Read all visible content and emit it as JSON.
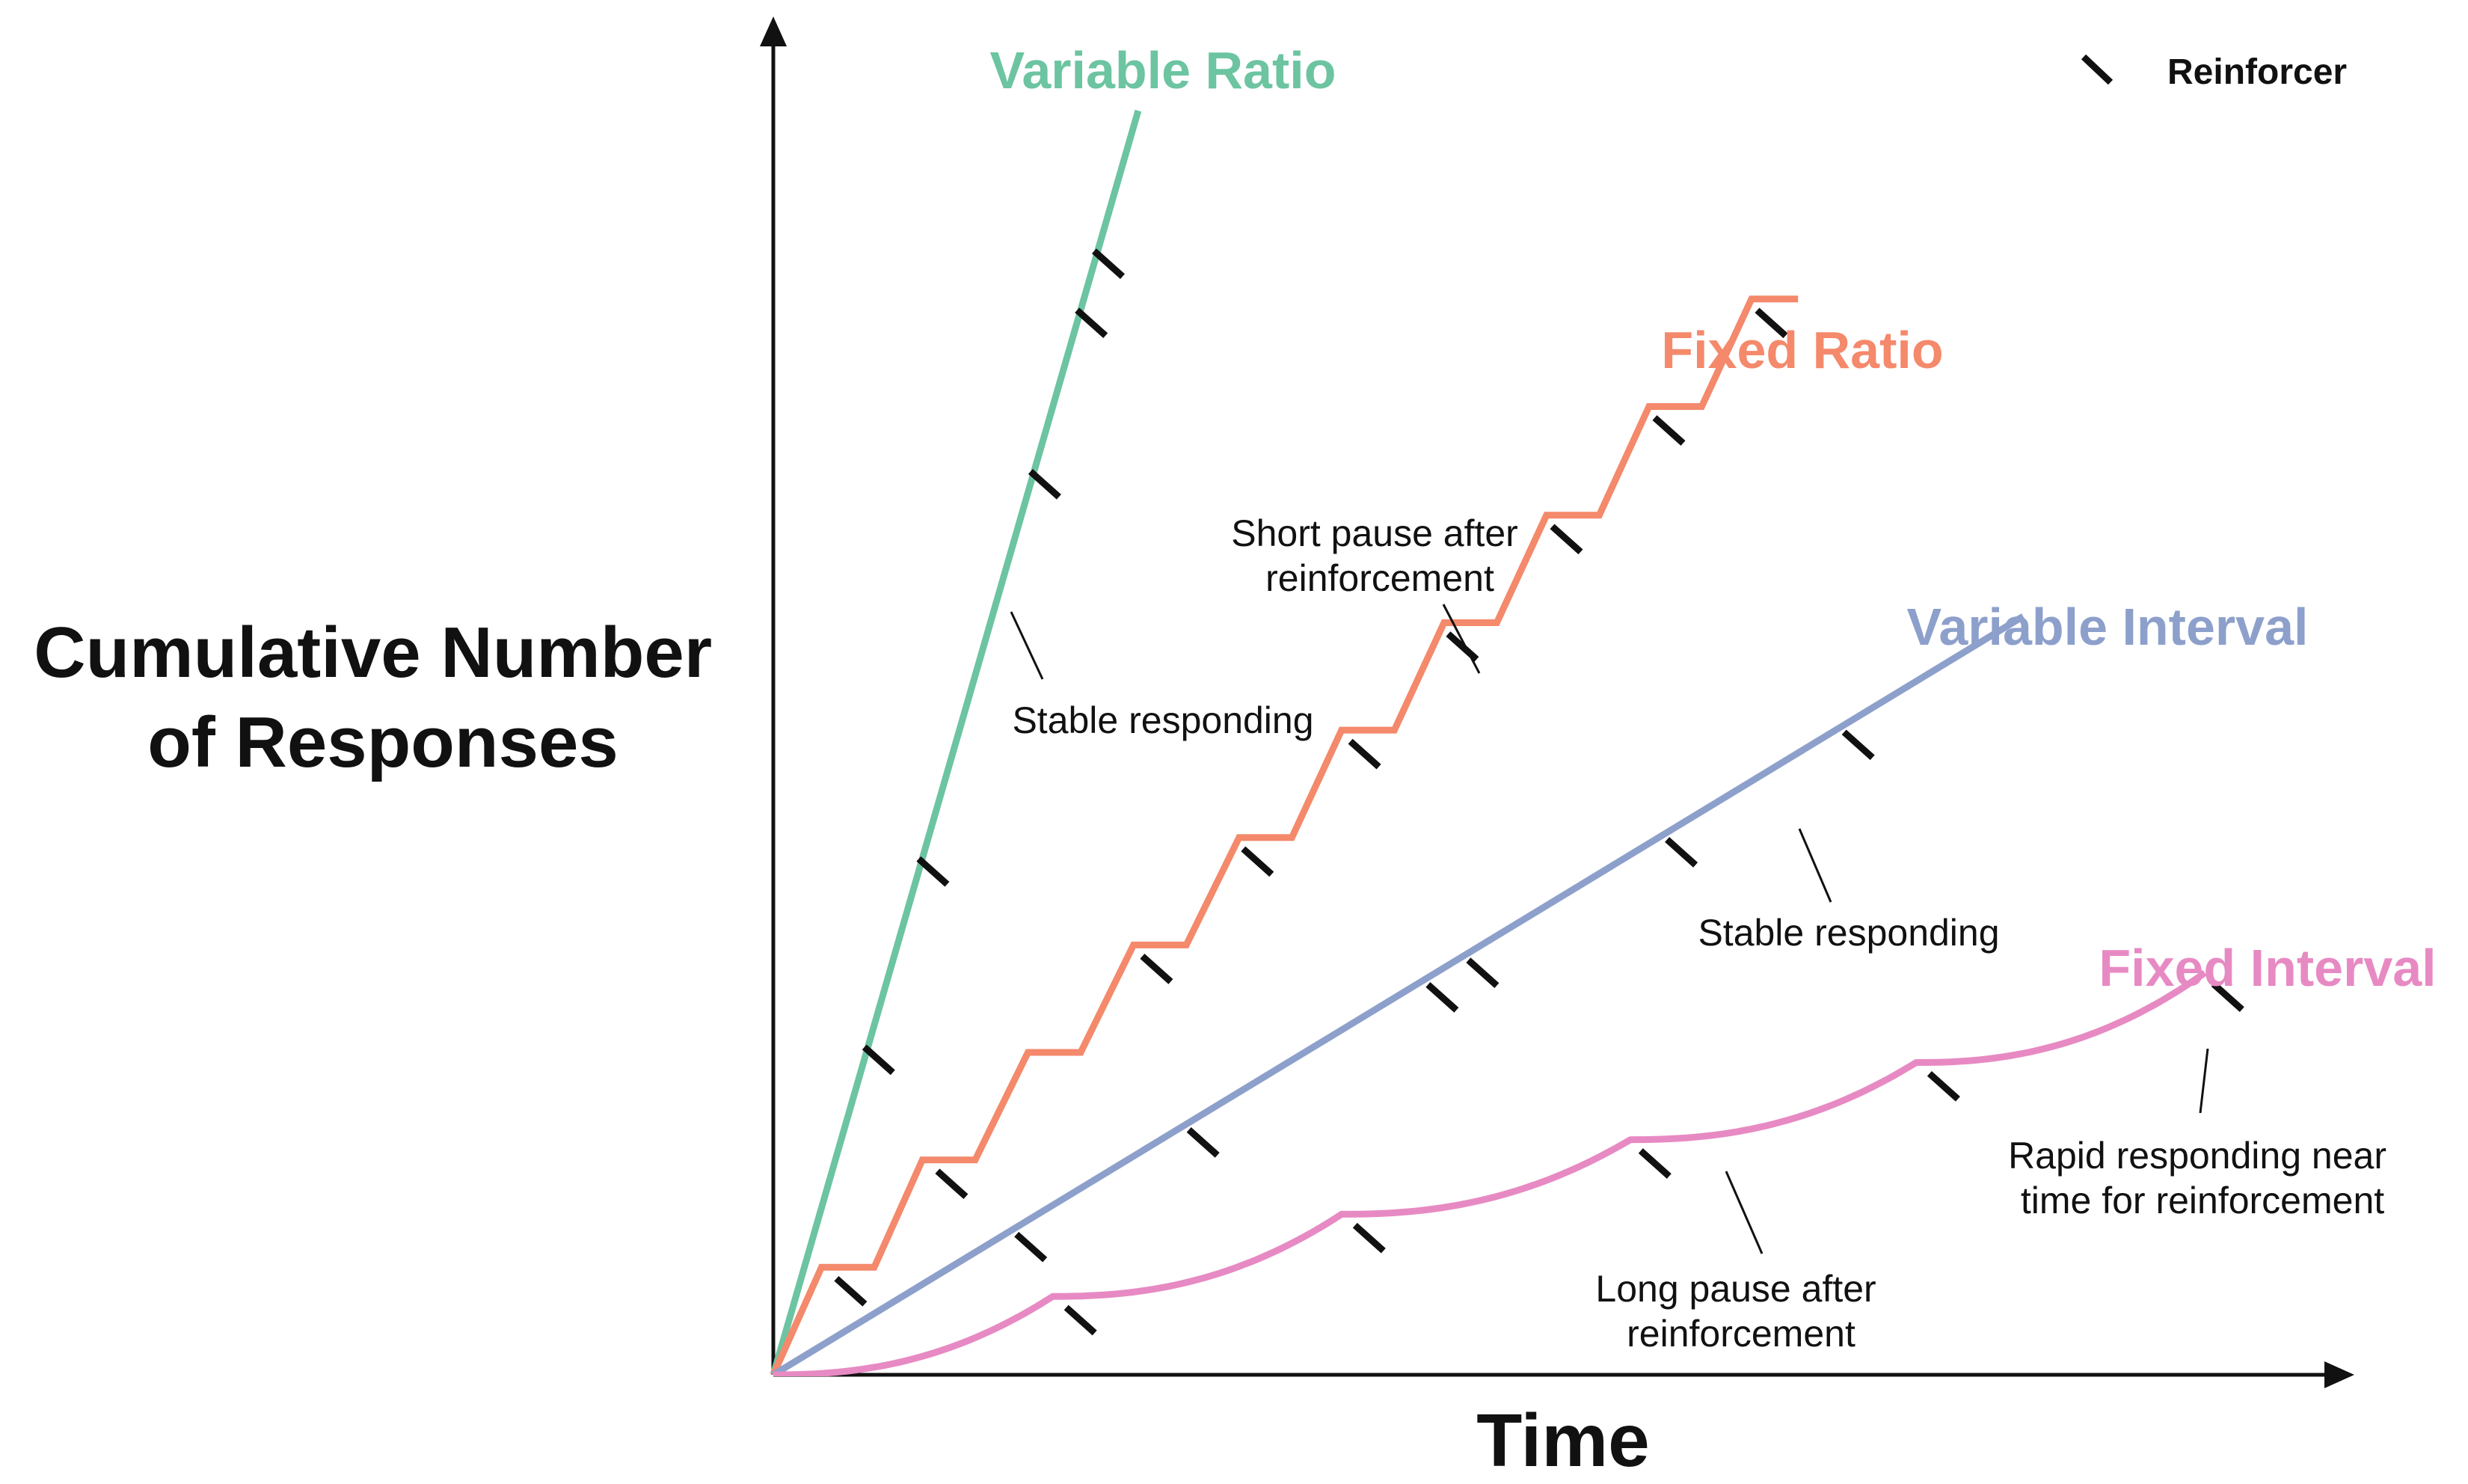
{
  "chart_data": {
    "type": "line",
    "xlabel": "Time",
    "ylabel_lines": [
      "Cumulative Number",
      "of Responses"
    ],
    "grid": false,
    "legend_position": "top-right",
    "legend": {
      "label": "Reinforcer",
      "color": "#111111"
    },
    "xlim": [
      0,
      100
    ],
    "ylim": [
      0,
      100
    ],
    "series": [
      {
        "name": "Variable Ratio",
        "color": "#6cc4a1",
        "shape": "linear",
        "points": [
          [
            0,
            0
          ],
          [
            23.5,
            100
          ]
        ],
        "reinforcers_x": [
          6.3,
          9.8,
          17.0,
          20.0,
          21.1
        ]
      },
      {
        "name": "Fixed Ratio",
        "color": "#f4896b",
        "shape": "staircase",
        "points": [
          [
            0,
            0
          ],
          [
            3.1,
            8.5
          ],
          [
            6.5,
            8.5
          ],
          [
            9.6,
            17.0
          ],
          [
            13.0,
            17.0
          ],
          [
            16.4,
            25.5
          ],
          [
            19.8,
            25.5
          ],
          [
            23.2,
            34.0
          ],
          [
            26.6,
            34.0
          ],
          [
            30.0,
            42.5
          ],
          [
            33.4,
            42.5
          ],
          [
            36.6,
            51.0
          ],
          [
            40.0,
            51.0
          ],
          [
            43.2,
            59.5
          ],
          [
            46.6,
            59.5
          ],
          [
            49.8,
            68.0
          ],
          [
            53.2,
            68.0
          ],
          [
            56.4,
            76.6
          ],
          [
            59.8,
            76.6
          ],
          [
            63.0,
            85.1
          ],
          [
            66.0,
            85.1
          ]
        ],
        "reinforcers_x": [
          4.5,
          11.0,
          24.2,
          30.7,
          37.6,
          43.9,
          50.6,
          57.2,
          63.8
        ]
      },
      {
        "name": "Variable Interval",
        "color": "#8da0cb",
        "shape": "linear",
        "points": [
          [
            0,
            0
          ],
          [
            80.5,
            60.0
          ]
        ],
        "reinforcers_x": [
          16.1,
          27.2,
          42.6,
          45.2,
          58.0,
          69.4
        ]
      },
      {
        "name": "Fixed Interval",
        "color": "#e78ac3",
        "shape": "scallop",
        "points": [
          [
            0,
            0
          ],
          [
            18.0,
            6.2
          ],
          [
            36.6,
            12.7
          ],
          [
            55.2,
            18.6
          ],
          [
            73.6,
            24.7
          ],
          [
            92.2,
            31.8
          ]
        ],
        "reinforcers_x": [
          19.3,
          37.9,
          56.3,
          74.9,
          93.2
        ]
      }
    ],
    "annotations": [
      {
        "lines": [
          "Stable responding"
        ]
      },
      {
        "lines": [
          "Short pause after",
          "reinforcement"
        ]
      },
      {
        "lines": [
          "Stable responding"
        ]
      },
      {
        "lines": [
          "Long pause after",
          "reinforcement"
        ]
      },
      {
        "lines": [
          "Rapid responding near",
          "time for reinforcement"
        ]
      }
    ]
  }
}
